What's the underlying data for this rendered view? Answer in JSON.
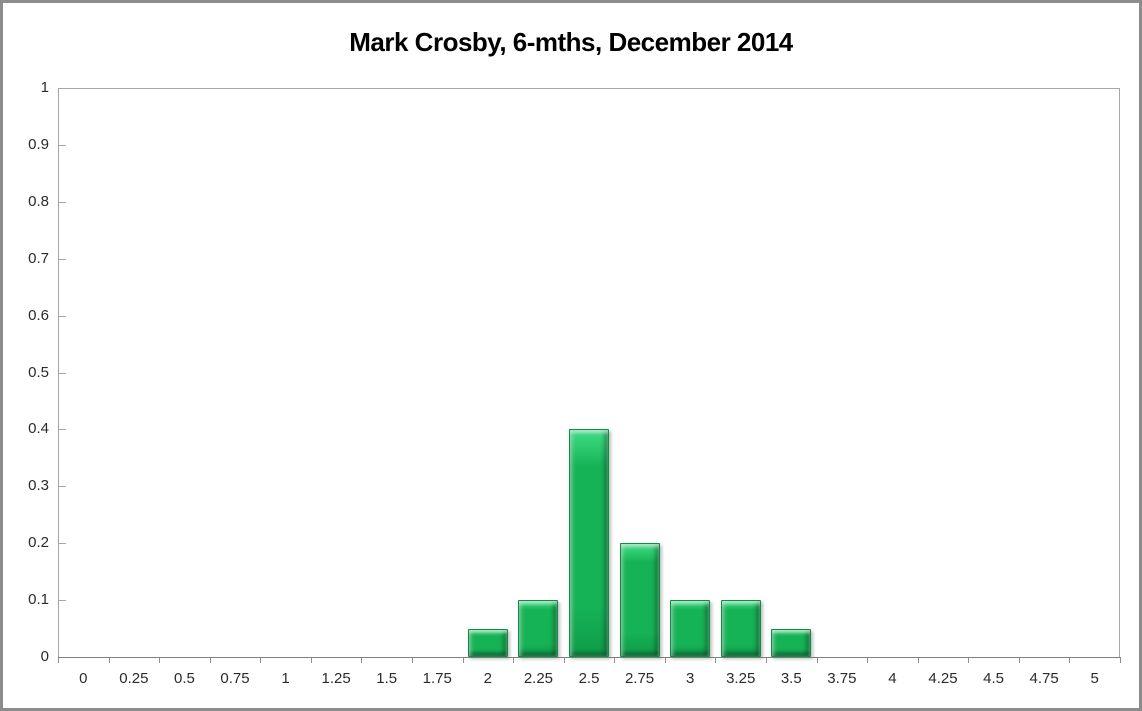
{
  "window": {
    "frame_border_color": "#8c8c8c",
    "background_color": "#ffffff"
  },
  "chart_data": {
    "type": "bar",
    "title": "Mark Crosby, 6-mths, December 2014",
    "xlabel": "",
    "ylabel": "",
    "xlim": [
      0,
      5
    ],
    "ylim": [
      0,
      1
    ],
    "grid": false,
    "legend": false,
    "categories": [
      "0",
      "0.25",
      "0.5",
      "0.75",
      "1",
      "1.25",
      "1.5",
      "1.75",
      "2",
      "2.25",
      "2.5",
      "2.75",
      "3",
      "3.25",
      "3.5",
      "3.75",
      "4",
      "4.25",
      "4.5",
      "4.75",
      "5"
    ],
    "values": [
      0,
      0,
      0,
      0,
      0,
      0,
      0,
      0,
      0.05,
      0.1,
      0.4,
      0.2,
      0.1,
      0.1,
      0.05,
      0,
      0,
      0,
      0,
      0,
      0
    ],
    "y_tick_labels": [
      "0",
      "0.1",
      "0.2",
      "0.3",
      "0.4",
      "0.5",
      "0.6",
      "0.7",
      "0.8",
      "0.9",
      "1"
    ],
    "colors": {
      "bar_light": "#41dd86",
      "bar_mid": "#16b356",
      "bar_dark": "#0d9c49",
      "bar_border": "#0a8f42",
      "axis_line": "#808080",
      "plot_border": "#a6a6a6",
      "tick_mark": "#8f8f8f",
      "label_text": "#2b2b2b",
      "title_text": "#000000"
    }
  }
}
